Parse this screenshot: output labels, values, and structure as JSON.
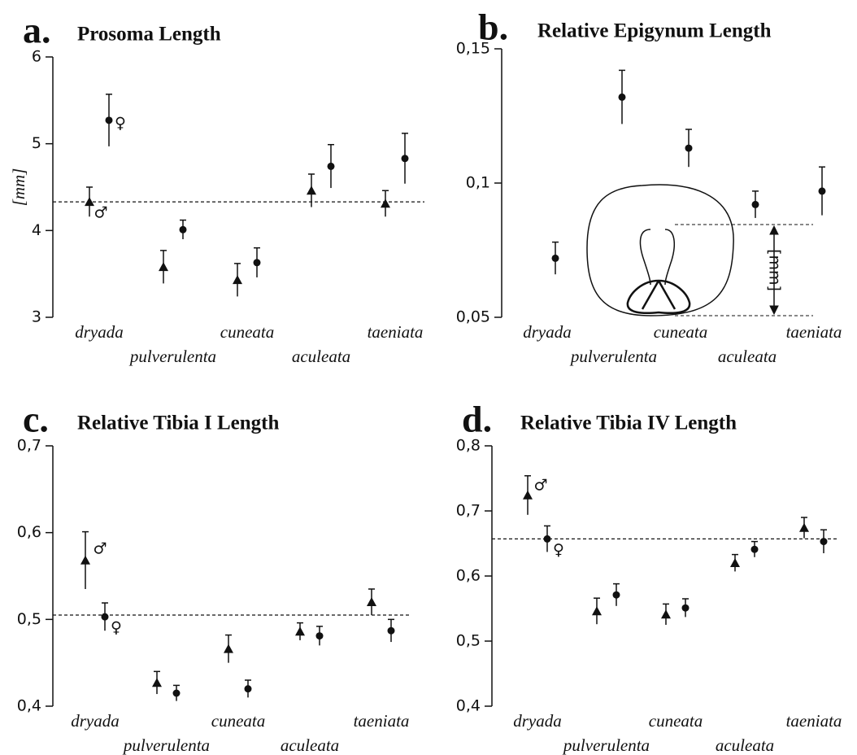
{
  "chart_data": [
    {
      "type": "errorbar",
      "panel_label": "a.",
      "title": "Prosoma Length",
      "y_label": "[mm]",
      "categories": [
        "dryada",
        "pulverulenta",
        "cuneata",
        "aculeata",
        "taeniata"
      ],
      "series": [
        {
          "name": "♂",
          "marker": "triangle",
          "color": "#111111",
          "values": [
            4.33,
            3.58,
            3.43,
            4.46,
            4.31
          ],
          "errors": [
            0.17,
            0.19,
            0.19,
            0.19,
            0.15
          ]
        },
        {
          "name": "♀",
          "marker": "circle",
          "color": "#111111",
          "values": [
            5.27,
            4.01,
            3.63,
            4.74,
            4.83
          ],
          "errors": [
            0.3,
            0.11,
            0.17,
            0.25,
            0.29
          ]
        }
      ],
      "reference_line": 4.33,
      "ylim": [
        3,
        6
      ],
      "yticks": [
        3,
        4,
        5,
        6
      ]
    },
    {
      "type": "errorbar",
      "panel_label": "b.",
      "title": "Relative Epigynum Length",
      "inset_label": "[mm]",
      "categories": [
        "dryada",
        "pulverulenta",
        "cuneata",
        "aculeata",
        "taeniata"
      ],
      "marker": "circle",
      "color": "#111111",
      "values": [
        0.072,
        0.132,
        0.113,
        0.092,
        0.097
      ],
      "errors": [
        0.006,
        0.01,
        0.007,
        0.005,
        0.009
      ],
      "ylim": [
        0.05,
        0.15
      ],
      "yticks": [
        {
          "value": 0.05,
          "label": "0,05"
        },
        {
          "value": 0.1,
          "label": "0,1"
        },
        {
          "value": 0.15,
          "label": "0,15"
        }
      ]
    },
    {
      "type": "errorbar",
      "panel_label": "c.",
      "title": "Relative Tibia I Length",
      "categories": [
        "dryada",
        "pulverulenta",
        "cuneata",
        "aculeata",
        "taeniata"
      ],
      "series": [
        {
          "name": "♂",
          "marker": "triangle",
          "color": "#111111",
          "values": [
            0.568,
            0.427,
            0.466,
            0.486,
            0.52
          ],
          "errors": [
            0.033,
            0.013,
            0.016,
            0.01,
            0.015
          ]
        },
        {
          "name": "♀",
          "marker": "circle",
          "color": "#111111",
          "values": [
            0.503,
            0.415,
            0.42,
            0.481,
            0.487
          ],
          "errors": [
            0.016,
            0.009,
            0.01,
            0.011,
            0.013
          ]
        }
      ],
      "reference_line": 0.505,
      "ylim": [
        0.4,
        0.7
      ],
      "yticks": [
        {
          "value": 0.4,
          "label": "0,4"
        },
        {
          "value": 0.5,
          "label": "0,5"
        },
        {
          "value": 0.6,
          "label": "0,6"
        },
        {
          "value": 0.7,
          "label": "0,7"
        }
      ]
    },
    {
      "type": "errorbar",
      "panel_label": "d.",
      "title": "Relative Tibia IV Length",
      "categories": [
        "dryada",
        "pulverulenta",
        "cuneata",
        "aculeata",
        "taeniata"
      ],
      "series": [
        {
          "name": "♂",
          "marker": "triangle",
          "color": "#111111",
          "values": [
            0.724,
            0.546,
            0.541,
            0.62,
            0.674
          ],
          "errors": [
            0.03,
            0.02,
            0.016,
            0.013,
            0.016
          ]
        },
        {
          "name": "♀",
          "marker": "circle",
          "color": "#111111",
          "values": [
            0.657,
            0.571,
            0.551,
            0.641,
            0.653
          ],
          "errors": [
            0.02,
            0.017,
            0.014,
            0.012,
            0.018
          ]
        }
      ],
      "reference_line": 0.657,
      "ylim": [
        0.4,
        0.8
      ],
      "yticks": [
        {
          "value": 0.4,
          "label": "0,4"
        },
        {
          "value": 0.5,
          "label": "0,5"
        },
        {
          "value": 0.6,
          "label": "0,6"
        },
        {
          "value": 0.7,
          "label": "0,7"
        },
        {
          "value": 0.8,
          "label": "0,8"
        }
      ]
    }
  ]
}
